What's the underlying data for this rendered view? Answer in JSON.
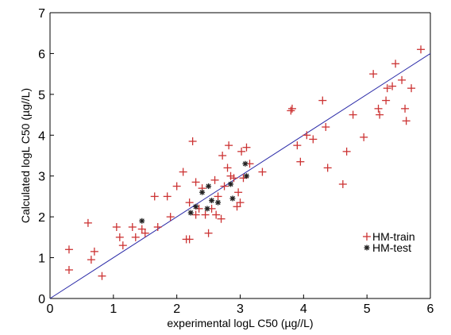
{
  "chart_data": {
    "type": "scatter",
    "xlabel": "experimental logL C50 (µg//L)",
    "ylabel": "Calculated logL C50 (µg//L)",
    "xlim": [
      0,
      6
    ],
    "ylim": [
      0,
      7
    ],
    "x_ticks": [
      "0",
      "1",
      "2",
      "3",
      "4",
      "5",
      "6"
    ],
    "y_ticks": [
      "0",
      "1",
      "2",
      "3",
      "4",
      "5",
      "6",
      "7"
    ],
    "grid": false,
    "legend_position": "lower-right",
    "fit_line": {
      "x": [
        0,
        6
      ],
      "y": [
        0,
        6
      ],
      "color": "#2b2ba8"
    },
    "series": [
      {
        "name": "HM-train",
        "marker": "+",
        "color": "#cc3333",
        "points": [
          [
            0.3,
            0.7
          ],
          [
            0.3,
            1.2
          ],
          [
            0.6,
            1.85
          ],
          [
            0.65,
            0.95
          ],
          [
            0.7,
            1.15
          ],
          [
            0.82,
            0.55
          ],
          [
            1.05,
            1.75
          ],
          [
            1.1,
            1.5
          ],
          [
            1.15,
            1.3
          ],
          [
            1.3,
            1.75
          ],
          [
            1.35,
            1.5
          ],
          [
            1.45,
            1.7
          ],
          [
            1.5,
            1.6
          ],
          [
            1.65,
            2.5
          ],
          [
            1.7,
            1.75
          ],
          [
            1.85,
            2.5
          ],
          [
            1.9,
            2.0
          ],
          [
            2.0,
            2.75
          ],
          [
            2.1,
            3.1
          ],
          [
            2.15,
            1.45
          ],
          [
            2.2,
            1.45
          ],
          [
            2.2,
            2.35
          ],
          [
            2.25,
            3.85
          ],
          [
            2.3,
            2.85
          ],
          [
            2.3,
            2.05
          ],
          [
            2.35,
            2.2
          ],
          [
            2.4,
            2.7
          ],
          [
            2.45,
            2.05
          ],
          [
            2.5,
            1.6
          ],
          [
            2.55,
            2.2
          ],
          [
            2.6,
            2.9
          ],
          [
            2.62,
            2.05
          ],
          [
            2.65,
            2.5
          ],
          [
            2.7,
            1.95
          ],
          [
            2.72,
            3.5
          ],
          [
            2.75,
            2.75
          ],
          [
            2.8,
            3.2
          ],
          [
            2.82,
            3.75
          ],
          [
            2.85,
            3.0
          ],
          [
            2.9,
            2.95
          ],
          [
            2.95,
            2.25
          ],
          [
            2.97,
            2.6
          ],
          [
            3.0,
            2.35
          ],
          [
            3.02,
            3.6
          ],
          [
            3.05,
            2.95
          ],
          [
            3.1,
            3.7
          ],
          [
            3.15,
            3.3
          ],
          [
            3.35,
            3.1
          ],
          [
            3.8,
            4.6
          ],
          [
            3.82,
            4.65
          ],
          [
            3.9,
            3.75
          ],
          [
            3.95,
            3.35
          ],
          [
            4.05,
            4.0
          ],
          [
            4.15,
            3.9
          ],
          [
            4.3,
            4.85
          ],
          [
            4.35,
            4.2
          ],
          [
            4.38,
            3.2
          ],
          [
            4.62,
            2.8
          ],
          [
            4.68,
            3.6
          ],
          [
            4.78,
            4.5
          ],
          [
            4.95,
            3.95
          ],
          [
            5.1,
            5.5
          ],
          [
            5.18,
            4.65
          ],
          [
            5.2,
            4.5
          ],
          [
            5.3,
            4.85
          ],
          [
            5.32,
            5.15
          ],
          [
            5.4,
            5.2
          ],
          [
            5.45,
            5.75
          ],
          [
            5.55,
            5.35
          ],
          [
            5.6,
            4.65
          ],
          [
            5.62,
            4.35
          ],
          [
            5.7,
            5.15
          ],
          [
            5.85,
            6.1
          ]
        ]
      },
      {
        "name": "HM-test",
        "marker": "*",
        "color": "#222222",
        "points": [
          [
            1.45,
            1.9
          ],
          [
            2.22,
            2.1
          ],
          [
            2.3,
            2.25
          ],
          [
            2.4,
            2.6
          ],
          [
            2.48,
            2.2
          ],
          [
            2.5,
            2.75
          ],
          [
            2.55,
            2.4
          ],
          [
            2.65,
            2.35
          ],
          [
            2.85,
            2.8
          ],
          [
            2.88,
            2.45
          ],
          [
            3.08,
            3.3
          ],
          [
            3.1,
            3.0
          ]
        ]
      }
    ]
  }
}
